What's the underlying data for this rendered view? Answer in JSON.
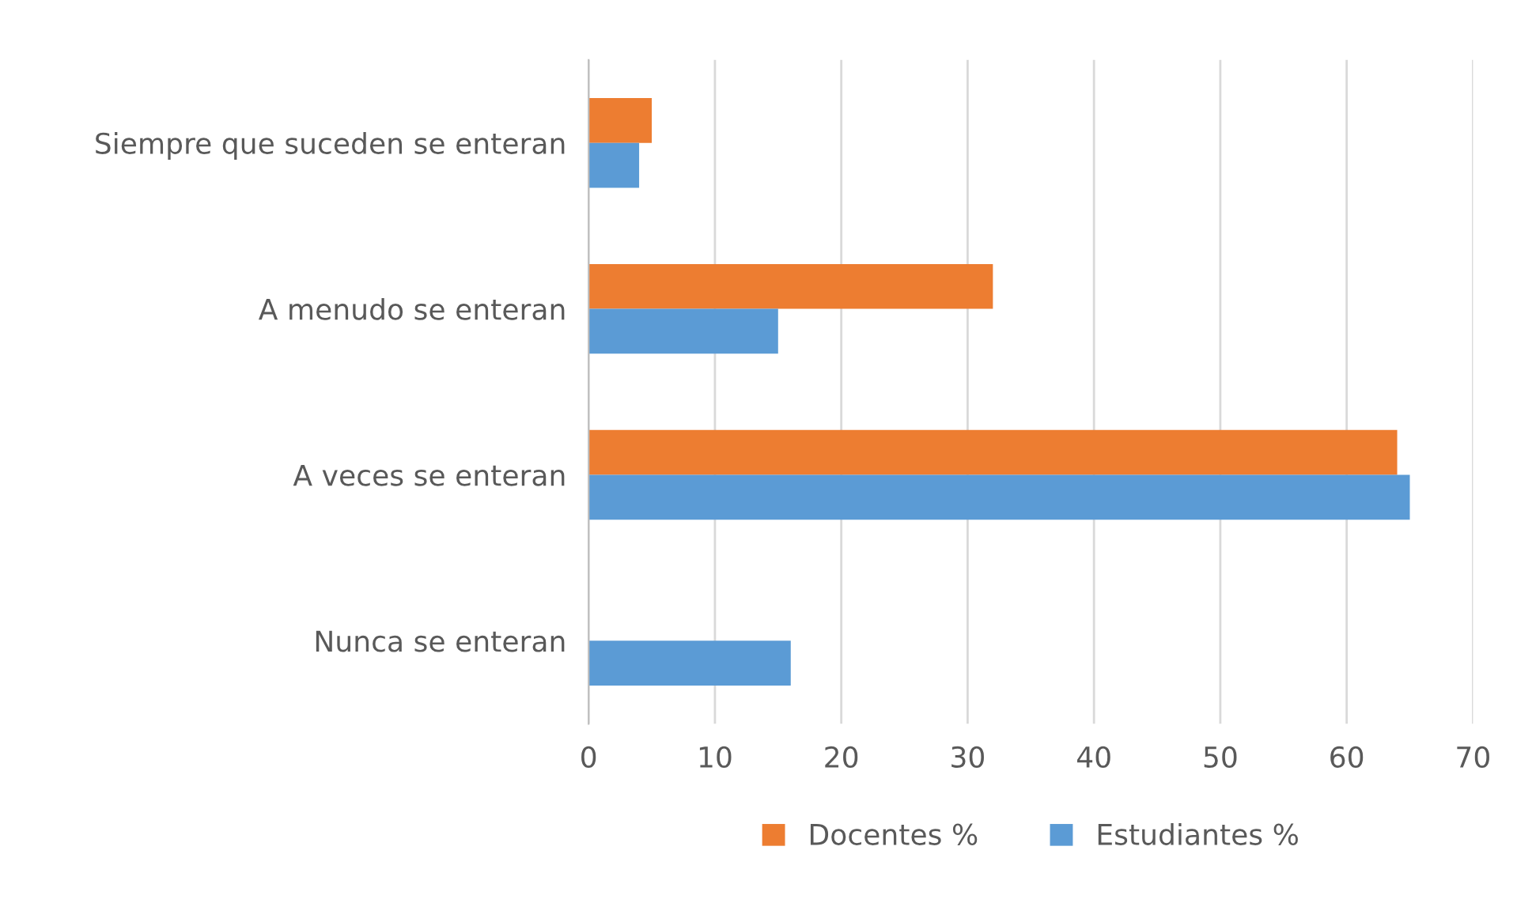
{
  "chart_data": {
    "type": "bar",
    "orientation": "horizontal",
    "categories": [
      "Siempre que suceden se enteran",
      "A menudo se enteran",
      "A veces se enteran",
      "Nunca se enteran"
    ],
    "series": [
      {
        "name": "Docentes %",
        "color": "#ed7d31",
        "values": [
          5,
          32,
          64,
          0
        ]
      },
      {
        "name": "Estudiantes %",
        "color": "#5b9bd5",
        "values": [
          4,
          15,
          65,
          16
        ]
      }
    ],
    "xlim": [
      0,
      70
    ],
    "xticks": [
      0,
      10,
      20,
      30,
      40,
      50,
      60,
      70
    ],
    "grid": "x",
    "legend": "bottom"
  }
}
